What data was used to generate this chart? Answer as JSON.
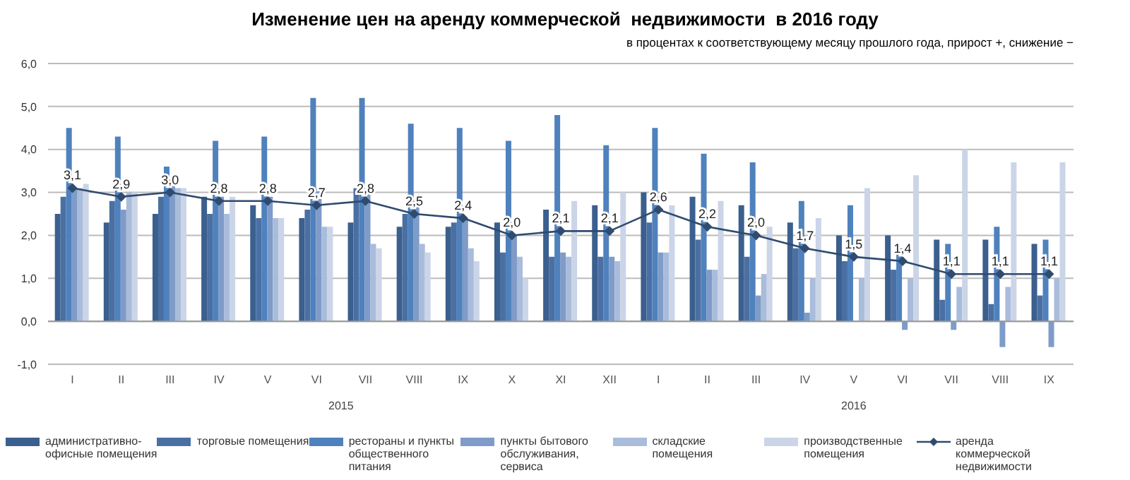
{
  "chart_data": {
    "type": "bar",
    "title": "Изменение цен на аренду коммерческой  недвижимости  в 2016 году",
    "subtitle": "в процентах к соответствующему месяцу прошлого года, прирост +, снижение −",
    "categories": [
      "I",
      "II",
      "III",
      "IV",
      "V",
      "VI",
      "VII",
      "VIII",
      "IX",
      "X",
      "XI",
      "XII",
      "I",
      "II",
      "III",
      "IV",
      "V",
      "VI",
      "VII",
      "VIII",
      "IX"
    ],
    "annotations": [
      "2015",
      "2016"
    ],
    "series": [
      {
        "name": "административно-офисные помещения",
        "color": "#3b5f8e",
        "values": [
          2.5,
          2.3,
          2.5,
          2.9,
          2.7,
          2.4,
          2.3,
          2.2,
          2.2,
          2.3,
          2.6,
          2.7,
          3.0,
          2.9,
          2.7,
          2.3,
          2.0,
          2.0,
          1.9,
          1.9,
          1.8
        ]
      },
      {
        "name": "торговые помещения",
        "color": "#4a70a3",
        "values": [
          2.9,
          2.8,
          2.9,
          2.5,
          2.4,
          2.6,
          3.1,
          2.5,
          2.3,
          1.6,
          1.5,
          1.5,
          2.3,
          1.9,
          1.5,
          1.7,
          1.4,
          1.2,
          0.5,
          0.4,
          0.6
        ]
      },
      {
        "name": "рестораны и пункты общественного питания",
        "color": "#4f81bd",
        "values": [
          4.5,
          4.3,
          3.6,
          4.2,
          4.3,
          5.2,
          5.2,
          4.6,
          4.5,
          4.2,
          4.8,
          4.1,
          4.5,
          3.9,
          3.7,
          2.8,
          2.7,
          1.7,
          1.8,
          2.2,
          1.9
        ]
      },
      {
        "name": "пункты бытового обслуживания, сервиса",
        "color": "#7f9bc8",
        "values": [
          3.1,
          2.6,
          3.3,
          2.9,
          2.9,
          3.1,
          3.0,
          2.8,
          2.4,
          2.0,
          1.6,
          1.5,
          1.6,
          1.2,
          0.6,
          0.2,
          0.0,
          -0.2,
          -0.2,
          -0.6,
          -0.6
        ]
      },
      {
        "name": "складские помещения",
        "color": "#a9bcdb",
        "values": [
          3.1,
          3.0,
          3.1,
          2.5,
          2.4,
          2.2,
          1.8,
          1.8,
          1.7,
          1.5,
          1.5,
          1.4,
          1.6,
          1.2,
          1.1,
          1.0,
          1.0,
          1.0,
          0.8,
          0.8,
          1.0
        ]
      },
      {
        "name": "производственные помещения",
        "color": "#cbd5e7",
        "values": [
          3.2,
          3.0,
          3.1,
          2.9,
          2.4,
          2.2,
          1.7,
          1.6,
          1.4,
          1.0,
          2.8,
          3.0,
          2.7,
          2.8,
          2.2,
          2.4,
          3.1,
          3.4,
          4.0,
          3.7,
          3.7
        ]
      },
      {
        "name": "аренда коммерческой недвижимости",
        "type": "line",
        "color": "#2f4b6e",
        "marker": "diamond",
        "values": [
          3.1,
          2.9,
          3.0,
          2.8,
          2.8,
          2.7,
          2.8,
          2.5,
          2.4,
          2.0,
          2.1,
          2.1,
          2.6,
          2.2,
          2.0,
          1.7,
          1.5,
          1.4,
          1.1,
          1.1,
          1.1
        ],
        "value_labels": [
          "3,1",
          "2,9",
          "3,0",
          "2,8",
          "2,8",
          "2,7",
          "2,8",
          "2,5",
          "2,4",
          "2,0",
          "2,1",
          "2,1",
          "2,6",
          "2,2",
          "2,0",
          "1,7",
          "1,5",
          "1,4",
          "1,1",
          "1,1",
          "1,1"
        ]
      }
    ],
    "ylim": [
      -1,
      6
    ],
    "yticks": [
      {
        "value": -1,
        "label": "-1,0"
      },
      {
        "value": 0,
        "label": "0,0"
      },
      {
        "value": 1,
        "label": "1,0"
      },
      {
        "value": 2,
        "label": "2,0"
      },
      {
        "value": 3,
        "label": "3,0"
      },
      {
        "value": 4,
        "label": "4,0"
      },
      {
        "value": 5,
        "label": "5,0"
      },
      {
        "value": 6,
        "label": "6,0"
      }
    ],
    "grid": "y",
    "legend": "bottom"
  }
}
